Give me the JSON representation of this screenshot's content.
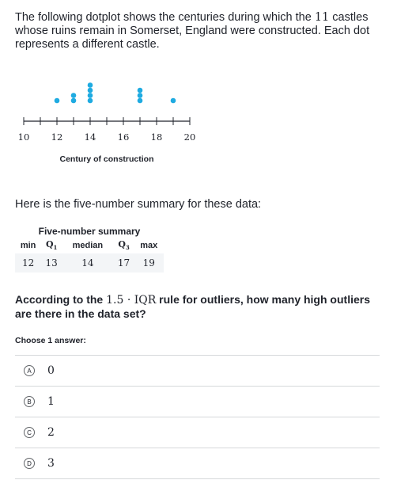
{
  "intro": {
    "before": "The following dotplot shows the centuries during which the ",
    "count": "11",
    "after": " castles whose ruins remain in Somerset, England were constructed. Each dot represents a different castle."
  },
  "chart_data": {
    "type": "scatter",
    "subtype": "dotplot",
    "xlabel": "Century of construction",
    "xlim": [
      10,
      20
    ],
    "tick_labels": [
      10,
      12,
      14,
      16,
      18,
      20
    ],
    "dot_color": "#1fabe1",
    "points": [
      {
        "x": 12,
        "count": 1
      },
      {
        "x": 13,
        "count": 2
      },
      {
        "x": 14,
        "count": 4
      },
      {
        "x": 17,
        "count": 3
      },
      {
        "x": 19,
        "count": 1
      }
    ]
  },
  "summary": {
    "intro": "Here is the five-number summary for these data:",
    "title": "Five-number summary",
    "headers": [
      "min",
      "Q1",
      "median",
      "Q3",
      "max"
    ],
    "values": [
      "12",
      "13",
      "14",
      "17",
      "19"
    ]
  },
  "question": {
    "before": "According to the ",
    "rule": "1.5 · IQR",
    "after": " rule for outliers, how many high outliers are there in the data set?"
  },
  "choose_label": "Choose 1 answer:",
  "choices": [
    {
      "letter": "A",
      "value": "0"
    },
    {
      "letter": "B",
      "value": "1"
    },
    {
      "letter": "C",
      "value": "2"
    },
    {
      "letter": "D",
      "value": "3"
    }
  ]
}
